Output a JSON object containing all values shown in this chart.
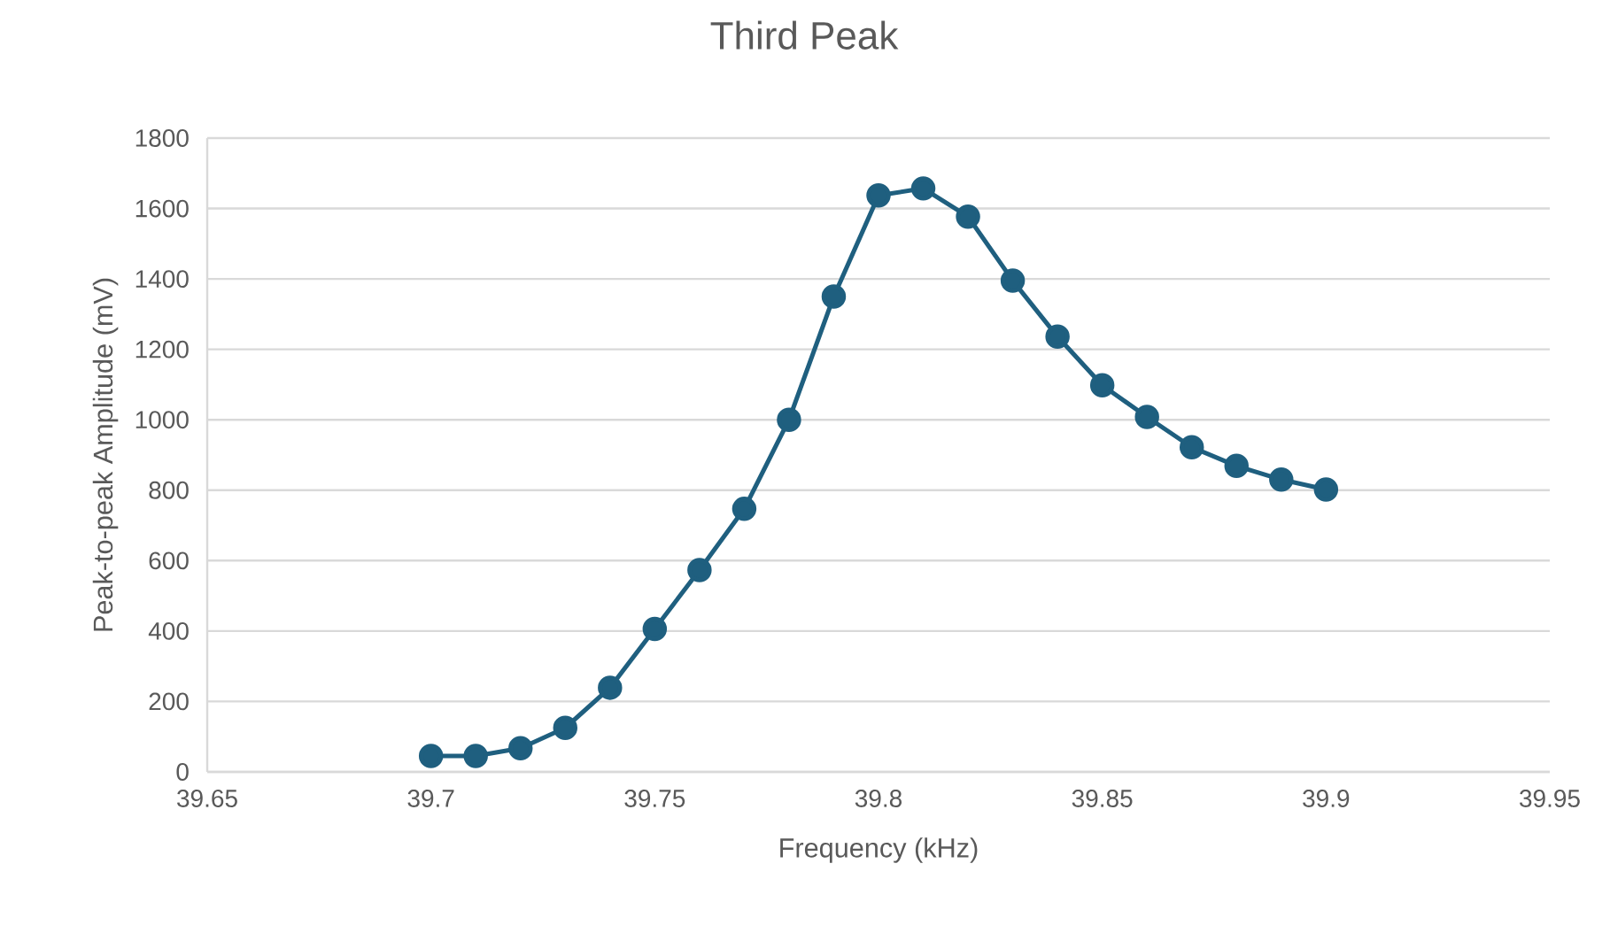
{
  "chart_data": {
    "type": "line",
    "title": "Third Peak",
    "xlabel": "Frequency (kHz)",
    "ylabel": "Peak-to-peak Amplitude (mV)",
    "x": [
      39.7,
      39.71,
      39.72,
      39.73,
      39.74,
      39.75,
      39.76,
      39.77,
      39.78,
      39.79,
      39.8,
      39.81,
      39.82,
      39.83,
      39.84,
      39.85,
      39.86,
      39.87,
      39.88,
      39.89,
      39.9
    ],
    "values": [
      45,
      45,
      67,
      125,
      239,
      406,
      573,
      747,
      1000,
      1350,
      1637,
      1657,
      1577,
      1395,
      1236,
      1098,
      1008,
      922,
      869,
      830,
      802
    ],
    "color": "#1f5f7f",
    "xlim": [
      39.65,
      39.95
    ],
    "xticks": [
      39.65,
      39.7,
      39.75,
      39.8,
      39.85,
      39.9,
      39.95
    ],
    "ylim": [
      0,
      1800
    ],
    "yticks": [
      0,
      200,
      400,
      600,
      800,
      1000,
      1200,
      1400,
      1600,
      1800
    ],
    "grid": "y",
    "marker": "circle",
    "line_style": "solid"
  }
}
